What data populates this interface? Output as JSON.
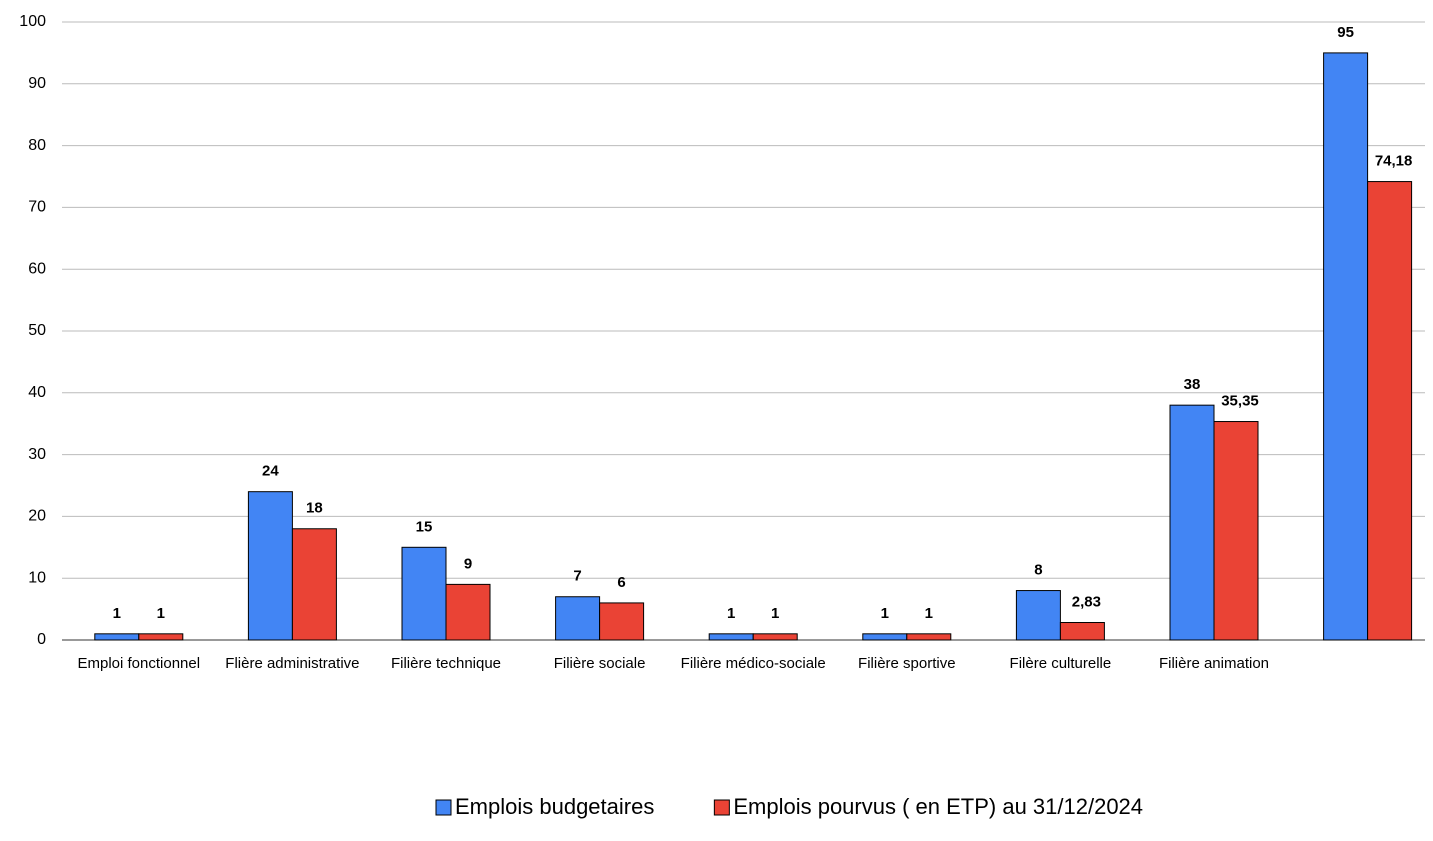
{
  "chart_data": {
    "type": "bar",
    "categories": [
      "Emploi fonctionnel",
      "Flière administrative",
      "Filière technique",
      "Filière sociale",
      "Filière médico-sociale",
      "Filière sportive",
      "Filère culturelle",
      "Filière animation",
      null
    ],
    "series": [
      {
        "name": "Emplois budgetaires",
        "color": "#4285f4",
        "values": [
          1,
          24,
          15,
          7,
          1,
          1,
          8,
          38,
          95
        ]
      },
      {
        "name": "Emplois pourvus ( en ETP) au 31/12/2024",
        "color": "#ea4335",
        "values": [
          1,
          18,
          9,
          6,
          1,
          1,
          2.83,
          35.35,
          74.18
        ],
        "value_labels": [
          "1",
          "18",
          "9",
          "6",
          "1",
          "1",
          "2,83",
          "35,35",
          "74,18"
        ]
      }
    ],
    "ylim": [
      0,
      100
    ],
    "yticks": [
      0,
      10,
      20,
      30,
      40,
      50,
      60,
      70,
      80,
      90,
      100
    ],
    "grid": true,
    "legend": "bottom"
  }
}
